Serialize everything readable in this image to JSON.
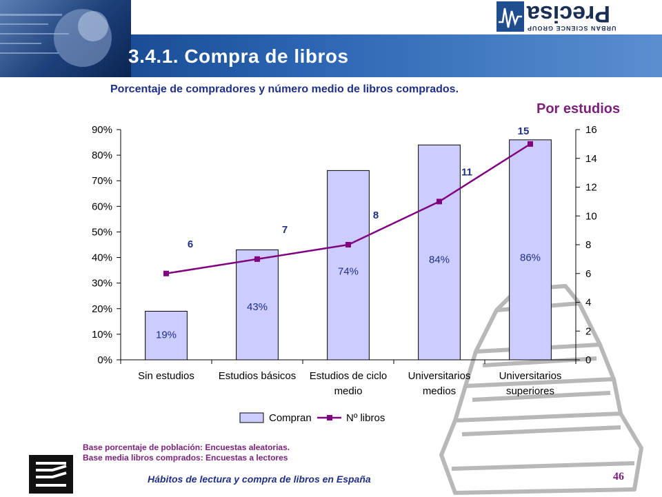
{
  "header": {
    "title": "3.4.1. Compra de libros",
    "logo_text": "Precisa",
    "logo_sub": "URBAN SCIENCE GROUP"
  },
  "subtitle": "Porcentaje de compradores y número medio de libros comprados.",
  "filter_label": "Por estudios",
  "chart_data": {
    "type": "bar",
    "categories": [
      [
        "Sin estudios"
      ],
      [
        "Estudios básicos"
      ],
      [
        "Estudios de ciclo",
        "medio"
      ],
      [
        "Universitarios",
        "medios"
      ],
      [
        "Universitarios",
        "superiores"
      ]
    ],
    "series": [
      {
        "name": "Compran",
        "type": "bar",
        "axis": "left",
        "values": [
          19,
          43,
          74,
          84,
          86
        ],
        "labels": [
          "19%",
          "43%",
          "74%",
          "84%",
          "86%"
        ]
      },
      {
        "name": "Nº libros",
        "type": "line",
        "axis": "right",
        "values": [
          6,
          7,
          8,
          11,
          15
        ],
        "labels": [
          "6",
          "7",
          "8",
          "11",
          "15"
        ]
      }
    ],
    "y_left": {
      "ylim": [
        0,
        90
      ],
      "ticks": [
        "0%",
        "10%",
        "20%",
        "30%",
        "40%",
        "50%",
        "60%",
        "70%",
        "80%",
        "90%"
      ]
    },
    "y_right": {
      "ylim": [
        0,
        16
      ],
      "ticks": [
        "0",
        "2",
        "4",
        "6",
        "8",
        "10",
        "12",
        "14",
        "16"
      ]
    },
    "grid": false,
    "legend": "bottom",
    "colors": {
      "bar_fill": "#ccccff",
      "bar_stroke": "#000000",
      "line": "#800080"
    }
  },
  "notes": [
    "Base porcentaje de población: Encuestas aleatorias.",
    "Base media libros comprados: Encuestas a lectores"
  ],
  "footer": {
    "text": "Hábitos de lectura y compra de libros en España",
    "page": "46"
  }
}
